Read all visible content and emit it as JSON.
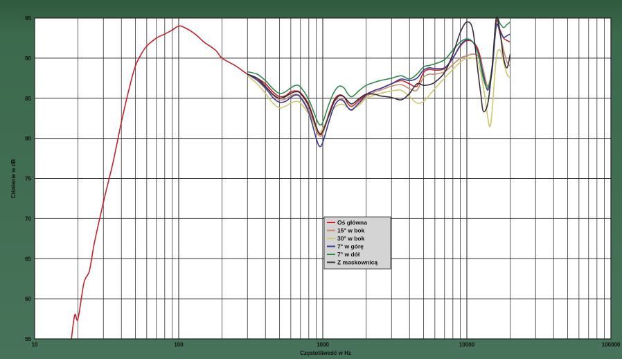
{
  "chart_data": {
    "type": "line",
    "title": "",
    "xlabel": "Częstotliwość w Hz",
    "ylabel": "Ciśnienie w dB",
    "xscale": "log",
    "xlim": [
      10,
      100000
    ],
    "ylim": [
      55,
      95
    ],
    "x_tick_labels": [
      "10",
      "100",
      "1000",
      "10000",
      "100000"
    ],
    "y_tick_labels": [
      "55",
      "60",
      "65",
      "70",
      "75",
      "80",
      "85",
      "90",
      "95"
    ],
    "grid": true,
    "legend_position": "center-lower",
    "series": [
      {
        "name": "Oś główna",
        "color": "#c8202a",
        "points": [
          [
            18,
            55
          ],
          [
            19,
            58
          ],
          [
            20,
            57.5
          ],
          [
            22,
            62
          ],
          [
            24,
            63.5
          ],
          [
            26,
            67
          ],
          [
            30,
            72
          ],
          [
            35,
            77
          ],
          [
            40,
            82
          ],
          [
            45,
            86
          ],
          [
            50,
            89
          ],
          [
            55,
            90.5
          ],
          [
            60,
            91.5
          ],
          [
            70,
            92.5
          ],
          [
            80,
            93
          ],
          [
            90,
            93.5
          ],
          [
            100,
            94
          ],
          [
            110,
            93.8
          ],
          [
            130,
            93
          ],
          [
            150,
            92
          ],
          [
            180,
            91
          ],
          [
            200,
            90
          ],
          [
            250,
            89
          ],
          [
            300,
            88
          ],
          [
            350,
            87.5
          ],
          [
            400,
            86.8
          ],
          [
            450,
            85.8
          ],
          [
            500,
            85.2
          ],
          [
            550,
            85.3
          ],
          [
            600,
            85.8
          ],
          [
            650,
            85.9
          ],
          [
            700,
            85.7
          ],
          [
            800,
            84.2
          ],
          [
            900,
            81.5
          ],
          [
            950,
            80.5
          ],
          [
            1000,
            80.8
          ],
          [
            1100,
            83
          ],
          [
            1200,
            84.8
          ],
          [
            1300,
            85.4
          ],
          [
            1400,
            85.2
          ],
          [
            1500,
            84.3
          ],
          [
            1600,
            84
          ],
          [
            1800,
            84.8
          ],
          [
            2000,
            85.5
          ],
          [
            2300,
            86
          ],
          [
            2500,
            86.2
          ],
          [
            3000,
            86.8
          ],
          [
            3500,
            87.2
          ],
          [
            4000,
            86.8
          ],
          [
            4500,
            86.5
          ],
          [
            5000,
            88.2
          ],
          [
            5500,
            88.6
          ],
          [
            6000,
            88.5
          ],
          [
            7000,
            88.7
          ],
          [
            8000,
            90
          ],
          [
            9000,
            91.5
          ],
          [
            10000,
            92.2
          ],
          [
            11000,
            92
          ],
          [
            12000,
            91
          ],
          [
            13000,
            88.5
          ],
          [
            14000,
            86.5
          ],
          [
            15000,
            89
          ],
          [
            16000,
            94.5
          ],
          [
            17000,
            93.5
          ],
          [
            18000,
            92.5
          ],
          [
            19000,
            92.2
          ],
          [
            20000,
            92
          ]
        ]
      },
      {
        "name": "15° w bok",
        "color": "#c88a6a",
        "points": [
          [
            300,
            88
          ],
          [
            350,
            87.2
          ],
          [
            400,
            86.2
          ],
          [
            450,
            85.4
          ],
          [
            500,
            84.8
          ],
          [
            550,
            84.9
          ],
          [
            600,
            85.3
          ],
          [
            650,
            85.5
          ],
          [
            700,
            85.2
          ],
          [
            800,
            83.5
          ],
          [
            900,
            81
          ],
          [
            950,
            80.3
          ],
          [
            1000,
            80.6
          ],
          [
            1100,
            82.8
          ],
          [
            1200,
            84.5
          ],
          [
            1300,
            85
          ],
          [
            1400,
            84.7
          ],
          [
            1500,
            83.8
          ],
          [
            1600,
            83.5
          ],
          [
            1800,
            84.4
          ],
          [
            2000,
            85.2
          ],
          [
            2300,
            85.8
          ],
          [
            2500,
            86
          ],
          [
            3000,
            86.5
          ],
          [
            3500,
            86.7
          ],
          [
            4000,
            86.2
          ],
          [
            4500,
            86
          ],
          [
            5000,
            87.6
          ],
          [
            5500,
            88
          ],
          [
            6000,
            88
          ],
          [
            7000,
            88.3
          ],
          [
            8000,
            89.2
          ],
          [
            9000,
            90
          ],
          [
            10000,
            90.3
          ],
          [
            11000,
            90.5
          ],
          [
            12000,
            90.2
          ],
          [
            13000,
            88.5
          ],
          [
            14000,
            86.5
          ],
          [
            15000,
            89
          ],
          [
            16000,
            94
          ],
          [
            17000,
            93
          ],
          [
            18000,
            91
          ],
          [
            19000,
            89.5
          ],
          [
            20000,
            89
          ]
        ]
      },
      {
        "name": "30° w bok",
        "color": "#cfc86e",
        "points": [
          [
            300,
            87.8
          ],
          [
            350,
            86.8
          ],
          [
            400,
            85.6
          ],
          [
            450,
            84.4
          ],
          [
            500,
            83.8
          ],
          [
            550,
            84
          ],
          [
            600,
            84.4
          ],
          [
            650,
            84.6
          ],
          [
            700,
            84.4
          ],
          [
            800,
            83
          ],
          [
            900,
            81.2
          ],
          [
            950,
            80.8
          ],
          [
            1000,
            81.2
          ],
          [
            1100,
            82.8
          ],
          [
            1200,
            83.8
          ],
          [
            1300,
            84.2
          ],
          [
            1400,
            84.2
          ],
          [
            1500,
            83.8
          ],
          [
            1600,
            83.6
          ],
          [
            1800,
            84.2
          ],
          [
            2000,
            85
          ],
          [
            2300,
            85.4
          ],
          [
            2500,
            85.6
          ],
          [
            3000,
            85.9
          ],
          [
            3500,
            86
          ],
          [
            4000,
            85.2
          ],
          [
            4500,
            84.4
          ],
          [
            5000,
            84.6
          ],
          [
            5500,
            85.4
          ],
          [
            6000,
            86.2
          ],
          [
            7000,
            87.5
          ],
          [
            8000,
            88.6
          ],
          [
            9000,
            89.5
          ],
          [
            10000,
            90
          ],
          [
            11000,
            90
          ],
          [
            12000,
            89.5
          ],
          [
            13000,
            86.5
          ],
          [
            14000,
            82.5
          ],
          [
            14500,
            81.5
          ],
          [
            15000,
            83.5
          ],
          [
            16000,
            90
          ],
          [
            17000,
            91
          ],
          [
            18000,
            89.5
          ],
          [
            19000,
            88
          ],
          [
            20000,
            87.5
          ]
        ]
      },
      {
        "name": "7° w górę",
        "color": "#3a3a9a",
        "points": [
          [
            300,
            88
          ],
          [
            350,
            87.3
          ],
          [
            400,
            86.3
          ],
          [
            450,
            85.1
          ],
          [
            500,
            84.5
          ],
          [
            550,
            84.6
          ],
          [
            600,
            85.1
          ],
          [
            650,
            85.4
          ],
          [
            700,
            85.1
          ],
          [
            800,
            83.2
          ],
          [
            900,
            80
          ],
          [
            950,
            79
          ],
          [
            1000,
            79.5
          ],
          [
            1100,
            82
          ],
          [
            1200,
            84
          ],
          [
            1300,
            84.8
          ],
          [
            1400,
            84.6
          ],
          [
            1500,
            83.8
          ],
          [
            1600,
            83.6
          ],
          [
            1800,
            84.5
          ],
          [
            2000,
            85.4
          ],
          [
            2300,
            86
          ],
          [
            2500,
            86.2
          ],
          [
            3000,
            86.8
          ],
          [
            3500,
            87.4
          ],
          [
            4000,
            87.2
          ],
          [
            4500,
            87.5
          ],
          [
            5000,
            88.5
          ],
          [
            5500,
            88.8
          ],
          [
            6000,
            88.7
          ],
          [
            7000,
            88.8
          ],
          [
            8000,
            90
          ],
          [
            9000,
            91.6
          ],
          [
            10000,
            92.3
          ],
          [
            11000,
            92
          ],
          [
            12000,
            90.6
          ],
          [
            13000,
            88
          ],
          [
            14000,
            86
          ],
          [
            15000,
            88.5
          ],
          [
            16000,
            94
          ],
          [
            17000,
            93.3
          ],
          [
            18000,
            92.6
          ],
          [
            19000,
            92.8
          ],
          [
            20000,
            93
          ]
        ]
      },
      {
        "name": "7° w dół",
        "color": "#2f8a4a",
        "points": [
          [
            300,
            88.3
          ],
          [
            350,
            88
          ],
          [
            400,
            87.2
          ],
          [
            450,
            86.2
          ],
          [
            500,
            85.6
          ],
          [
            550,
            85.8
          ],
          [
            600,
            86.3
          ],
          [
            650,
            86.6
          ],
          [
            700,
            86.4
          ],
          [
            800,
            84.8
          ],
          [
            900,
            82.5
          ],
          [
            950,
            81.7
          ],
          [
            1000,
            82
          ],
          [
            1100,
            84.2
          ],
          [
            1200,
            85.8
          ],
          [
            1300,
            86.5
          ],
          [
            1400,
            86.3
          ],
          [
            1500,
            85.5
          ],
          [
            1600,
            85.2
          ],
          [
            1800,
            86
          ],
          [
            2000,
            86.6
          ],
          [
            2300,
            87
          ],
          [
            2500,
            87.2
          ],
          [
            3000,
            87.5
          ],
          [
            3500,
            87.8
          ],
          [
            4000,
            87.4
          ],
          [
            4500,
            88
          ],
          [
            5000,
            88.9
          ],
          [
            5500,
            89.1
          ],
          [
            6000,
            89.3
          ],
          [
            7000,
            89.8
          ],
          [
            8000,
            91
          ],
          [
            9000,
            92
          ],
          [
            10000,
            92.4
          ],
          [
            11000,
            92
          ],
          [
            12000,
            90.5
          ],
          [
            13000,
            87.5
          ],
          [
            14000,
            86.3
          ],
          [
            15000,
            89
          ],
          [
            16000,
            94.8
          ],
          [
            17000,
            94.3
          ],
          [
            18000,
            93.8
          ],
          [
            19000,
            94.2
          ],
          [
            20000,
            94.5
          ]
        ]
      },
      {
        "name": "Z maskownicą",
        "color": "#3a2a3a",
        "points": [
          [
            300,
            88
          ],
          [
            350,
            87.5
          ],
          [
            400,
            86.5
          ],
          [
            450,
            85.5
          ],
          [
            500,
            85
          ],
          [
            550,
            85.2
          ],
          [
            600,
            85.6
          ],
          [
            650,
            85.8
          ],
          [
            700,
            85.6
          ],
          [
            800,
            84
          ],
          [
            900,
            81.4
          ],
          [
            950,
            80.6
          ],
          [
            1000,
            80.9
          ],
          [
            1100,
            82.8
          ],
          [
            1200,
            84.6
          ],
          [
            1300,
            85.3
          ],
          [
            1400,
            85.2
          ],
          [
            1500,
            84.6
          ],
          [
            1600,
            84.3
          ],
          [
            1800,
            85
          ],
          [
            2000,
            85.5
          ],
          [
            2300,
            85.5
          ],
          [
            2500,
            85.3
          ],
          [
            3000,
            85.1
          ],
          [
            3500,
            84.8
          ],
          [
            4000,
            85.6
          ],
          [
            4500,
            86.8
          ],
          [
            5000,
            86.6
          ],
          [
            5500,
            86.7
          ],
          [
            6000,
            87
          ],
          [
            7000,
            88.2
          ],
          [
            8000,
            90.5
          ],
          [
            9000,
            93.2
          ],
          [
            10000,
            94.5
          ],
          [
            11000,
            93.5
          ],
          [
            12000,
            88
          ],
          [
            12500,
            85.5
          ],
          [
            13000,
            83.4
          ],
          [
            14000,
            84.4
          ],
          [
            15000,
            89
          ],
          [
            16000,
            95
          ],
          [
            17000,
            93.2
          ],
          [
            18000,
            90
          ],
          [
            19000,
            88.8
          ],
          [
            20000,
            90.5
          ]
        ]
      }
    ]
  }
}
